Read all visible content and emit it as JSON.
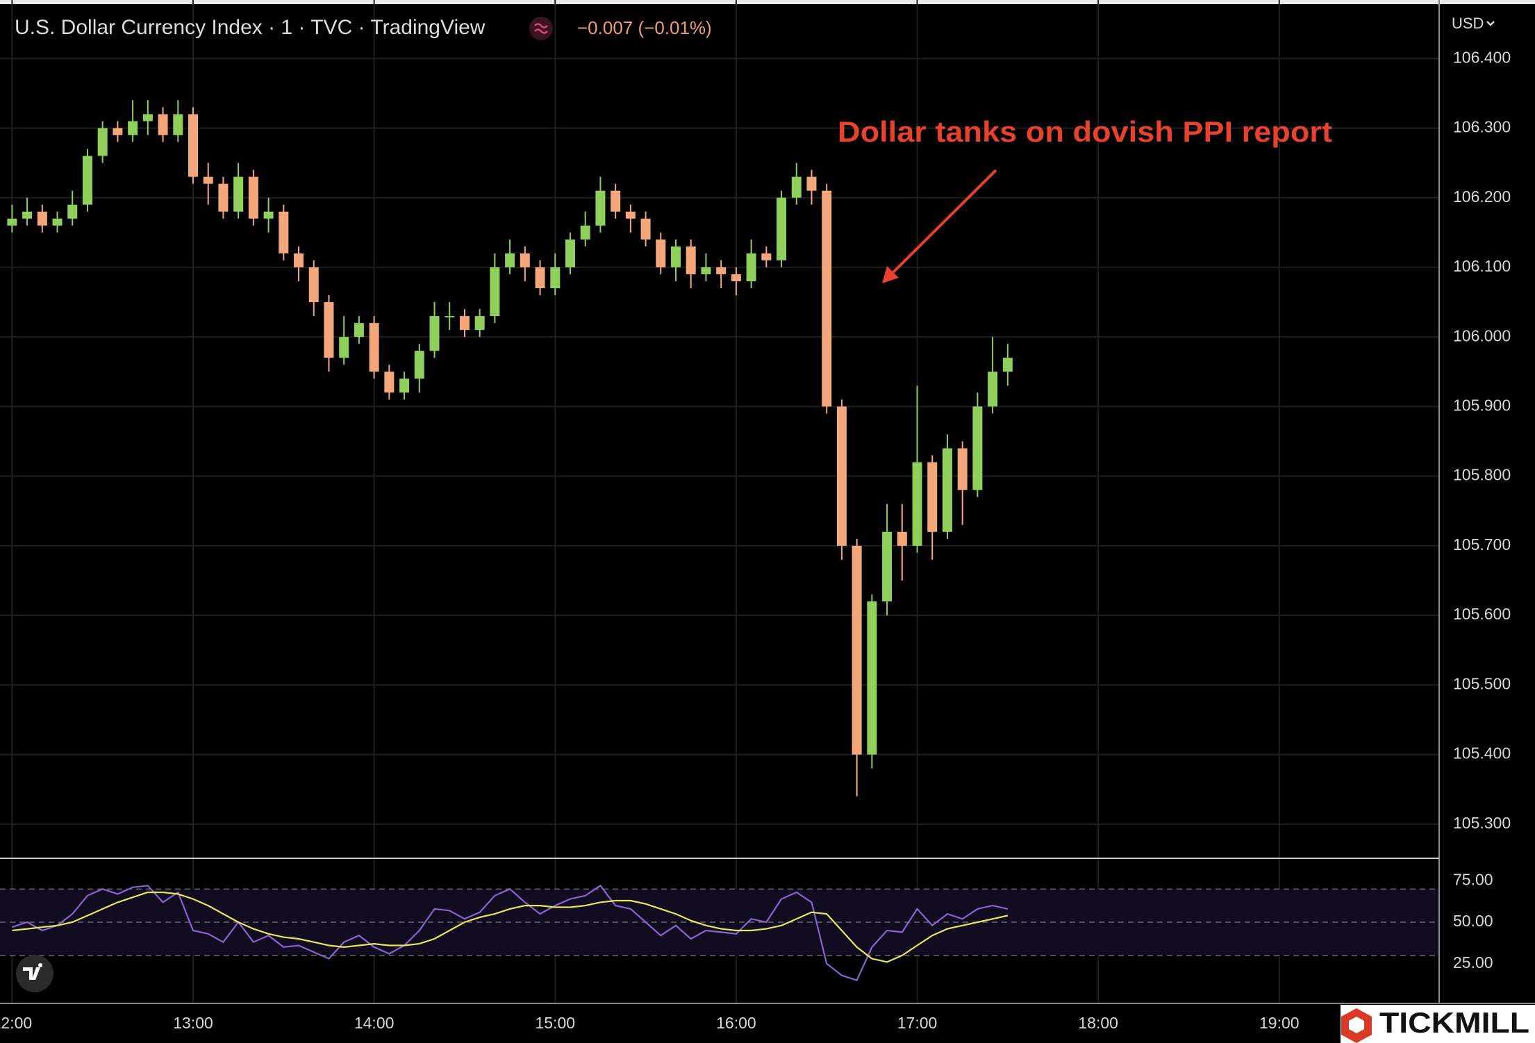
{
  "watermark": "TICKMILL",
  "chart_data": [
    {
      "type": "candlestick",
      "title": "U.S. Dollar Currency Index · 1 · TVC · TradingView",
      "change": "−0.007 (−0.01%)",
      "currency": "USD",
      "annotation": "Dollar tanks on dovish PPI report",
      "up_color": "#8fcf5c",
      "down_color": "#f5a77c",
      "annotation_color": "#e8412c",
      "grid": true,
      "x": [
        "12:00",
        "12:05",
        "12:10",
        "12:15",
        "12:20",
        "12:25",
        "12:30",
        "12:35",
        "12:40",
        "12:45",
        "12:50",
        "12:55",
        "13:00",
        "13:05",
        "13:10",
        "13:15",
        "13:20",
        "13:25",
        "13:30",
        "13:35",
        "13:40",
        "13:45",
        "13:50",
        "13:55",
        "14:00",
        "14:05",
        "14:10",
        "14:15",
        "14:20",
        "14:25",
        "14:30",
        "14:35",
        "14:40",
        "14:45",
        "14:50",
        "14:55",
        "15:00",
        "15:05",
        "15:10",
        "15:15",
        "15:20",
        "15:25",
        "15:30",
        "15:35",
        "15:40",
        "15:45",
        "15:50",
        "15:55",
        "16:00",
        "16:05",
        "16:10",
        "16:15",
        "16:20",
        "16:25",
        "16:30",
        "16:35",
        "16:40",
        "16:45",
        "16:50",
        "16:55",
        "17:00",
        "17:05",
        "17:10",
        "17:15",
        "17:20",
        "17:25",
        "17:30"
      ],
      "open": [
        106.16,
        106.17,
        106.18,
        106.16,
        106.17,
        106.19,
        106.26,
        106.3,
        106.29,
        106.31,
        106.32,
        106.29,
        106.32,
        106.23,
        106.22,
        106.18,
        106.23,
        106.17,
        106.18,
        106.12,
        106.1,
        106.05,
        105.97,
        106.0,
        106.02,
        105.95,
        105.92,
        105.94,
        105.98,
        106.03,
        106.03,
        106.01,
        106.03,
        106.1,
        106.12,
        106.1,
        106.07,
        106.1,
        106.14,
        106.16,
        106.21,
        106.18,
        106.17,
        106.14,
        106.1,
        106.13,
        106.09,
        106.1,
        106.09,
        106.08,
        106.12,
        106.11,
        106.2,
        106.23,
        106.21,
        105.9,
        105.7,
        105.4,
        105.62,
        105.72,
        105.7,
        105.82,
        105.72,
        105.84,
        105.78,
        105.9,
        105.95
      ],
      "high": [
        106.19,
        106.2,
        106.19,
        106.18,
        106.21,
        106.27,
        106.31,
        106.31,
        106.34,
        106.34,
        106.33,
        106.34,
        106.33,
        106.25,
        106.23,
        106.25,
        106.24,
        106.2,
        106.19,
        106.13,
        106.11,
        106.06,
        106.03,
        106.03,
        106.03,
        105.96,
        105.95,
        105.99,
        106.05,
        106.05,
        106.04,
        106.04,
        106.12,
        106.14,
        106.13,
        106.11,
        106.12,
        106.15,
        106.18,
        106.23,
        106.22,
        106.19,
        106.18,
        106.15,
        106.14,
        106.14,
        106.12,
        106.11,
        106.1,
        106.14,
        106.13,
        106.21,
        106.25,
        106.24,
        106.22,
        105.91,
        105.71,
        105.63,
        105.76,
        105.76,
        105.93,
        105.83,
        105.86,
        105.85,
        105.92,
        106.0,
        105.99
      ],
      "low": [
        106.15,
        106.16,
        106.15,
        106.15,
        106.16,
        106.18,
        106.25,
        106.28,
        106.28,
        106.29,
        106.28,
        106.28,
        106.22,
        106.19,
        106.17,
        106.17,
        106.16,
        106.15,
        106.11,
        106.08,
        106.03,
        105.95,
        105.96,
        105.99,
        105.94,
        105.91,
        105.91,
        105.92,
        105.97,
        106.01,
        106.0,
        106.0,
        106.02,
        106.09,
        106.08,
        106.06,
        106.06,
        106.09,
        106.13,
        106.15,
        106.17,
        106.15,
        106.13,
        106.09,
        106.08,
        106.07,
        106.08,
        106.07,
        106.06,
        106.07,
        106.1,
        106.1,
        106.19,
        106.19,
        105.89,
        105.68,
        105.34,
        105.38,
        105.6,
        105.65,
        105.69,
        105.68,
        105.71,
        105.73,
        105.77,
        105.89,
        105.93
      ],
      "close": [
        106.17,
        106.18,
        106.16,
        106.17,
        106.19,
        106.26,
        106.3,
        106.29,
        106.31,
        106.32,
        106.29,
        106.32,
        106.23,
        106.22,
        106.18,
        106.23,
        106.17,
        106.18,
        106.12,
        106.1,
        106.05,
        105.97,
        106.0,
        106.02,
        105.95,
        105.92,
        105.94,
        105.98,
        106.03,
        106.03,
        106.01,
        106.03,
        106.1,
        106.12,
        106.1,
        106.07,
        106.1,
        106.14,
        106.16,
        106.21,
        106.18,
        106.17,
        106.14,
        106.1,
        106.13,
        106.09,
        106.1,
        106.09,
        106.08,
        106.12,
        106.11,
        106.2,
        106.23,
        106.21,
        105.9,
        105.7,
        105.4,
        105.62,
        105.72,
        105.7,
        105.82,
        105.72,
        105.84,
        105.78,
        105.9,
        105.95,
        105.97
      ],
      "xlim": [
        "11:56",
        "19:53"
      ],
      "xticks": [
        "12:00",
        "13:00",
        "14:00",
        "15:00",
        "16:00",
        "17:00",
        "18:00",
        "19:00"
      ],
      "ylim": [
        105.251,
        106.484
      ],
      "yticks": [
        {
          "value": 106.4,
          "label": "106.400"
        },
        {
          "value": 106.3,
          "label": "106.300"
        },
        {
          "value": 106.2,
          "label": "106.200"
        },
        {
          "value": 106.1,
          "label": "106.100"
        },
        {
          "value": 106.0,
          "label": "106.000"
        },
        {
          "value": 105.9,
          "label": "105.900"
        },
        {
          "value": 105.8,
          "label": "105.800"
        },
        {
          "value": 105.7,
          "label": "105.700"
        },
        {
          "value": 105.6,
          "label": "105.600"
        },
        {
          "value": 105.5,
          "label": "105.500"
        },
        {
          "value": 105.4,
          "label": "105.400"
        },
        {
          "value": 105.3,
          "label": "105.300"
        }
      ]
    },
    {
      "type": "line",
      "x": [
        "12:00",
        "12:05",
        "12:10",
        "12:15",
        "12:20",
        "12:25",
        "12:30",
        "12:35",
        "12:40",
        "12:45",
        "12:50",
        "12:55",
        "13:00",
        "13:05",
        "13:10",
        "13:15",
        "13:20",
        "13:25",
        "13:30",
        "13:35",
        "13:40",
        "13:45",
        "13:50",
        "13:55",
        "14:00",
        "14:05",
        "14:10",
        "14:15",
        "14:20",
        "14:25",
        "14:30",
        "14:35",
        "14:40",
        "14:45",
        "14:50",
        "14:55",
        "15:00",
        "15:05",
        "15:10",
        "15:15",
        "15:20",
        "15:25",
        "15:30",
        "15:35",
        "15:40",
        "15:45",
        "15:50",
        "15:55",
        "16:00",
        "16:05",
        "16:10",
        "16:15",
        "16:20",
        "16:25",
        "16:30",
        "16:35",
        "16:40",
        "16:45",
        "16:50",
        "16:55",
        "17:00",
        "17:05",
        "17:10",
        "17:15",
        "17:20",
        "17:25",
        "17:30"
      ],
      "series": [
        {
          "color": "#8a63d2",
          "values": [
            47,
            50,
            45,
            48,
            55,
            66,
            70,
            67,
            71,
            72,
            62,
            68,
            45,
            43,
            38,
            50,
            38,
            42,
            35,
            36,
            32,
            28,
            38,
            42,
            35,
            31,
            36,
            45,
            58,
            57,
            52,
            56,
            66,
            70,
            62,
            55,
            60,
            64,
            66,
            72,
            60,
            58,
            50,
            42,
            48,
            40,
            45,
            44,
            43,
            52,
            50,
            64,
            68,
            62,
            25,
            18,
            15,
            35,
            45,
            44,
            58,
            48,
            55,
            52,
            58,
            60,
            58
          ]
        },
        {
          "color": "#e6e65a",
          "values": [
            45,
            46,
            47,
            48,
            50,
            54,
            58,
            62,
            65,
            68,
            68,
            67,
            64,
            60,
            55,
            50,
            46,
            43,
            41,
            40,
            38,
            36,
            35,
            36,
            37,
            36,
            36,
            37,
            40,
            45,
            50,
            53,
            55,
            58,
            60,
            60,
            59,
            59,
            60,
            62,
            63,
            63,
            61,
            58,
            55,
            51,
            48,
            46,
            45,
            45,
            46,
            48,
            52,
            56,
            55,
            45,
            35,
            28,
            26,
            30,
            36,
            42,
            46,
            48,
            50,
            52,
            54
          ]
        }
      ],
      "bands": [
        70,
        50,
        30
      ],
      "band_fill": "#120c20",
      "xlim": [
        "11:56",
        "19:53"
      ],
      "ylim": [
        1.5,
        88.5
      ],
      "yticks": [
        {
          "value": 75,
          "label": "75.00"
        },
        {
          "value": 50,
          "label": "50.00"
        },
        {
          "value": 25,
          "label": "25.00"
        }
      ]
    }
  ]
}
